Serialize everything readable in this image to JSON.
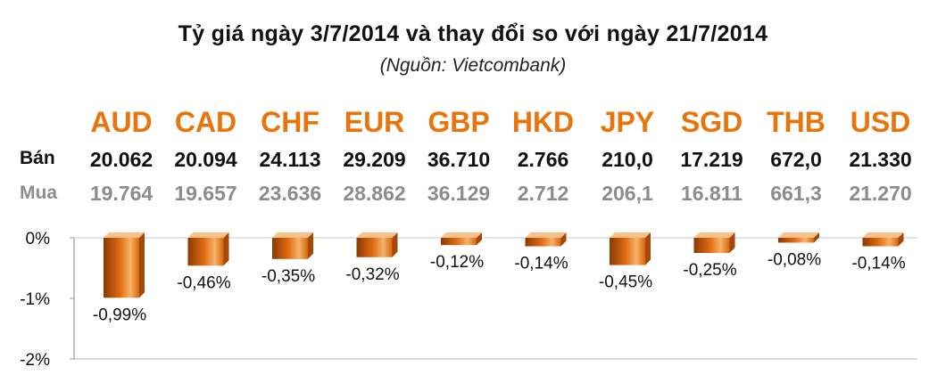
{
  "title": "Tỷ giá ngày 3/7/2014 và thay đổi so với ngày 21/7/2014",
  "subtitle": "(Nguồn: Vietcombank)",
  "row_labels": {
    "sell": "Bán",
    "buy": "Mua"
  },
  "colors": {
    "accent": "#e8740c",
    "bar_dark": "#8a3a03",
    "bar_light": "#f7b36a",
    "muted": "#8c8c8c"
  },
  "chart_data": {
    "type": "bar",
    "categories": [
      "AUD",
      "CAD",
      "CHF",
      "EUR",
      "GBP",
      "HKD",
      "JPY",
      "SGD",
      "THB",
      "USD"
    ],
    "sell": [
      "20.062",
      "20.094",
      "24.113",
      "29.209",
      "36.710",
      "2.766",
      "210,0",
      "17.219",
      "672,0",
      "21.330"
    ],
    "buy": [
      "19.764",
      "19.657",
      "23.636",
      "28.862",
      "36.129",
      "2.712",
      "206,1",
      "16.811",
      "661,3",
      "21.270"
    ],
    "values": [
      -0.99,
      -0.46,
      -0.35,
      -0.32,
      -0.12,
      -0.14,
      -0.45,
      -0.25,
      -0.08,
      -0.14
    ],
    "data_labels": [
      "-0,99%",
      "-0,46%",
      "-0,35%",
      "-0,32%",
      "-0,12%",
      "-0,14%",
      "-0,45%",
      "-0,25%",
      "-0,08%",
      "-0,14%"
    ],
    "yticks": [
      0,
      -1,
      -2
    ],
    "ytick_labels": [
      "0%",
      "-1%",
      "-2%"
    ],
    "ylim": [
      -2,
      0
    ],
    "grid": false
  }
}
